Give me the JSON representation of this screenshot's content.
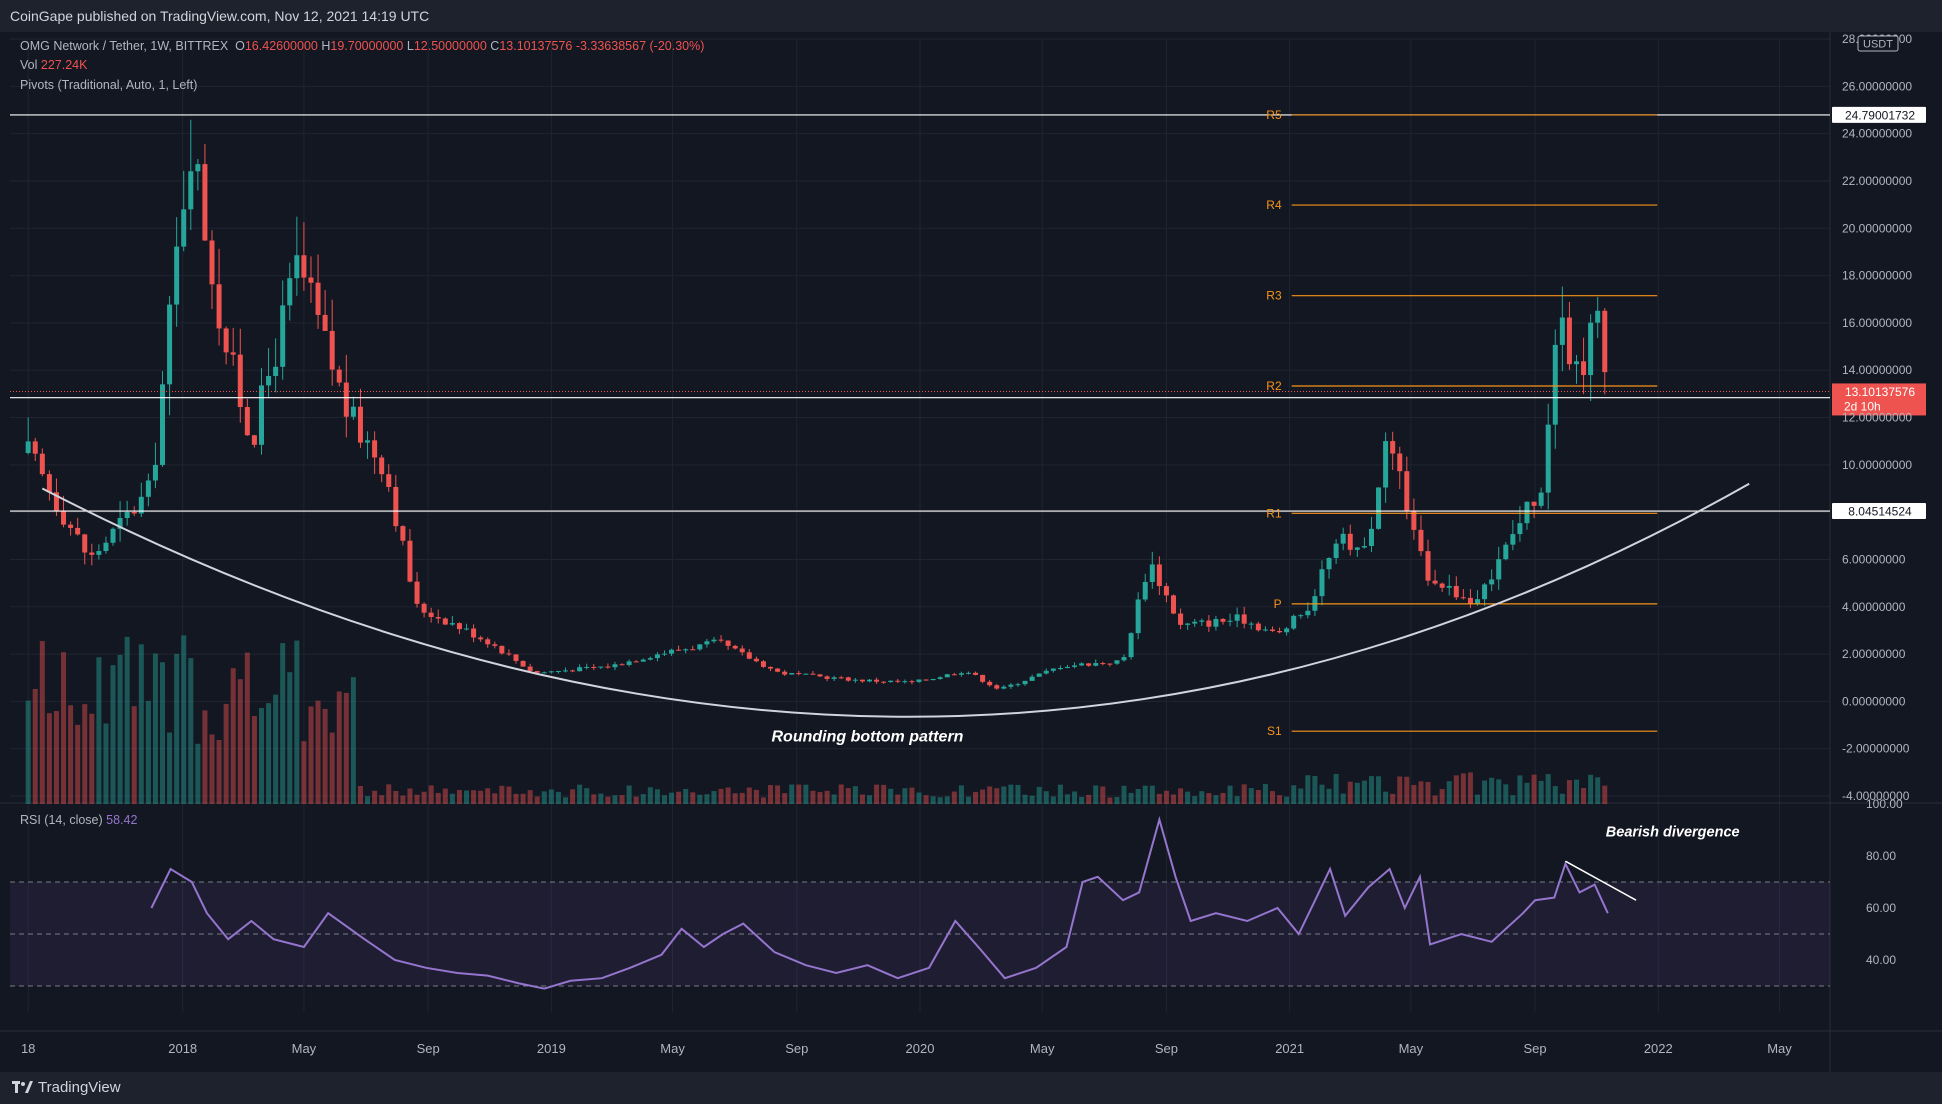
{
  "publisher": "CoinGape published on TradingView.com, Nov 12, 2021 14:19 UTC",
  "brand": "TradingView",
  "header": {
    "symbol": "OMG Network / Tether, 1W, BITTREX",
    "o_label": "O",
    "o": "16.42600000",
    "h_label": "H",
    "h": "19.70000000",
    "l_label": "L",
    "l": "12.50000000",
    "c_label": "C",
    "c": "13.10137576",
    "change": "-3.33638567 (-20.30%)",
    "vol_label": "Vol",
    "vol": "227.24K",
    "pivots": "Pivots (Traditional, Auto, 1, Left)",
    "rsi_label": "RSI (14, close)",
    "rsi_value": "58.42"
  },
  "annotations": {
    "rounding": "Rounding bottom pattern",
    "divergence": "Bearish divergence"
  },
  "colors": {
    "bg": "#131722",
    "up": "#26a69a",
    "down": "#ef5350",
    "pivot": "#f7931a",
    "rsi": "#9575cd",
    "hline": "#ffffff"
  },
  "chart_data": {
    "type": "candlestick",
    "title": "OMG Network / Tether, 1W, BITTREX",
    "y_axis": {
      "unit": "USDT",
      "range": [
        -4,
        28
      ],
      "ticks": [
        "28.00000000",
        "26.00000000",
        "24.00000000",
        "22.00000000",
        "20.00000000",
        "18.00000000",
        "16.00000000",
        "14.00000000",
        "12.00000000",
        "10.00000000",
        "8.00000000",
        "6.00000000",
        "4.00000000",
        "2.00000000",
        "0.00000000",
        "-2.00000000",
        "-4.00000000"
      ]
    },
    "x_axis": {
      "range": [
        "2017-07-14",
        "2022-06-20"
      ],
      "ticks": [
        {
          "label": "18",
          "date": "2017-08-01"
        },
        {
          "label": "2018",
          "date": "2018-01-01"
        },
        {
          "label": "May",
          "date": "2018-05-01"
        },
        {
          "label": "Sep",
          "date": "2018-09-01"
        },
        {
          "label": "2019",
          "date": "2019-01-01"
        },
        {
          "label": "May",
          "date": "2019-05-01"
        },
        {
          "label": "Sep",
          "date": "2019-09-01"
        },
        {
          "label": "2020",
          "date": "2020-01-01"
        },
        {
          "label": "May",
          "date": "2020-05-01"
        },
        {
          "label": "Sep",
          "date": "2020-09-01"
        },
        {
          "label": "2021",
          "date": "2021-01-01"
        },
        {
          "label": "May",
          "date": "2021-05-01"
        },
        {
          "label": "Sep",
          "date": "2021-09-01"
        },
        {
          "label": "2022",
          "date": "2022-01-01"
        },
        {
          "label": "May",
          "date": "2022-05-01"
        }
      ]
    },
    "horizontal_levels": [
      {
        "value": 24.79001732,
        "label": "24.79001732"
      },
      {
        "value": 12.83736765,
        "label": "12.83736765"
      },
      {
        "value": 8.04514524,
        "label": "8.04514524"
      }
    ],
    "last_price": {
      "value": 13.10137576,
      "label": "13.10137576",
      "countdown": "2d 10h"
    },
    "pivots": {
      "start": "2021-01-01",
      "end": "2021-12-31",
      "levels": [
        {
          "name": "R5",
          "value": 24.79
        },
        {
          "name": "R4",
          "value": 20.98
        },
        {
          "name": "R3",
          "value": 17.15
        },
        {
          "name": "R2",
          "value": 13.33
        },
        {
          "name": "R1",
          "value": 7.95
        },
        {
          "name": "P",
          "value": 4.12
        },
        {
          "name": "S1",
          "value": -1.26
        }
      ]
    },
    "key_points": [
      {
        "date": "2017-08-01",
        "price": 10.5
      },
      {
        "date": "2017-10-01",
        "price": 6.0
      },
      {
        "date": "2017-12-01",
        "price": 9.0
      },
      {
        "date": "2018-01-08",
        "price": 24.0
      },
      {
        "date": "2018-02-10",
        "price": 15.5
      },
      {
        "date": "2018-03-10",
        "price": 11.0
      },
      {
        "date": "2018-04-25",
        "price": 18.5
      },
      {
        "date": "2018-06-15",
        "price": 12.0
      },
      {
        "date": "2018-07-20",
        "price": 10.0
      },
      {
        "date": "2018-08-20",
        "price": 4.0
      },
      {
        "date": "2018-09-20",
        "price": 3.4
      },
      {
        "date": "2018-11-01",
        "price": 2.5
      },
      {
        "date": "2018-12-15",
        "price": 1.2
      },
      {
        "date": "2019-03-01",
        "price": 1.5
      },
      {
        "date": "2019-04-15",
        "price": 2.0
      },
      {
        "date": "2019-06-15",
        "price": 2.5
      },
      {
        "date": "2019-08-15",
        "price": 1.2
      },
      {
        "date": "2019-11-01",
        "price": 0.9
      },
      {
        "date": "2019-12-25",
        "price": 0.8
      },
      {
        "date": "2020-02-15",
        "price": 1.3
      },
      {
        "date": "2020-03-20",
        "price": 0.5
      },
      {
        "date": "2020-05-20",
        "price": 1.5
      },
      {
        "date": "2020-07-20",
        "price": 1.7
      },
      {
        "date": "2020-08-15",
        "price": 6.0
      },
      {
        "date": "2020-09-15",
        "price": 3.2
      },
      {
        "date": "2020-11-15",
        "price": 3.5
      },
      {
        "date": "2020-12-20",
        "price": 2.8
      },
      {
        "date": "2021-01-20",
        "price": 4.0
      },
      {
        "date": "2021-02-15",
        "price": 7.0
      },
      {
        "date": "2021-03-15",
        "price": 6.0
      },
      {
        "date": "2021-04-10",
        "price": 11.5
      },
      {
        "date": "2021-04-30",
        "price": 7.5
      },
      {
        "date": "2021-05-15",
        "price": 5.5
      },
      {
        "date": "2021-07-05",
        "price": 4.0
      },
      {
        "date": "2021-08-15",
        "price": 7.5
      },
      {
        "date": "2021-09-10",
        "price": 9.5
      },
      {
        "date": "2021-09-20",
        "price": 16.0
      },
      {
        "date": "2021-10-15",
        "price": 14.0
      },
      {
        "date": "2021-11-01",
        "price": 16.4
      },
      {
        "date": "2021-11-12",
        "price": 13.1
      }
    ],
    "rounding_curve": [
      {
        "date": "2017-08-15",
        "price": 9.0
      },
      {
        "date": "2019-12-25",
        "price": -0.65
      },
      {
        "date": "2022-04-01",
        "price": 9.2
      }
    ],
    "rsi": {
      "name": "RSI (14, close)",
      "range": [
        20,
        100
      ],
      "ticks": [
        "100.00",
        "80.00",
        "60.00",
        "40.00"
      ],
      "bands": {
        "upper": 70,
        "middle": 50,
        "lower": 30
      },
      "points": [
        [
          "2017-12-01",
          60
        ],
        [
          "2017-12-20",
          75
        ],
        [
          "2018-01-10",
          70
        ],
        [
          "2018-01-25",
          58
        ],
        [
          "2018-02-15",
          48
        ],
        [
          "2018-03-10",
          55
        ],
        [
          "2018-04-01",
          48
        ],
        [
          "2018-05-01",
          45
        ],
        [
          "2018-05-25",
          58
        ],
        [
          "2018-06-30",
          48
        ],
        [
          "2018-07-30",
          40
        ],
        [
          "2018-08-30",
          37
        ],
        [
          "2018-09-30",
          35
        ],
        [
          "2018-10-30",
          34
        ],
        [
          "2018-11-30",
          31
        ],
        [
          "2018-12-25",
          29
        ],
        [
          "2019-01-20",
          32
        ],
        [
          "2019-02-20",
          33
        ],
        [
          "2019-03-20",
          37
        ],
        [
          "2019-04-20",
          42
        ],
        [
          "2019-05-10",
          52
        ],
        [
          "2019-06-01",
          45
        ],
        [
          "2019-06-20",
          50
        ],
        [
          "2019-07-10",
          54
        ],
        [
          "2019-08-10",
          43
        ],
        [
          "2019-09-10",
          38
        ],
        [
          "2019-10-10",
          35
        ],
        [
          "2019-11-10",
          38
        ],
        [
          "2019-12-10",
          33
        ],
        [
          "2020-01-10",
          37
        ],
        [
          "2020-02-05",
          55
        ],
        [
          "2020-03-01",
          44
        ],
        [
          "2020-03-25",
          33
        ],
        [
          "2020-04-25",
          37
        ],
        [
          "2020-05-25",
          45
        ],
        [
          "2020-06-10",
          70
        ],
        [
          "2020-06-25",
          72
        ],
        [
          "2020-07-20",
          63
        ],
        [
          "2020-08-05",
          66
        ],
        [
          "2020-08-25",
          94
        ],
        [
          "2020-09-10",
          72
        ],
        [
          "2020-09-25",
          55
        ],
        [
          "2020-10-20",
          58
        ],
        [
          "2020-11-20",
          55
        ],
        [
          "2020-12-20",
          60
        ],
        [
          "2021-01-10",
          50
        ],
        [
          "2021-01-25",
          62
        ],
        [
          "2021-02-10",
          75
        ],
        [
          "2021-02-25",
          57
        ],
        [
          "2021-03-20",
          68
        ],
        [
          "2021-04-10",
          75
        ],
        [
          "2021-04-25",
          60
        ],
        [
          "2021-05-10",
          72
        ],
        [
          "2021-05-20",
          46
        ],
        [
          "2021-06-20",
          50
        ],
        [
          "2021-07-20",
          47
        ],
        [
          "2021-08-20",
          58
        ],
        [
          "2021-09-01",
          63
        ],
        [
          "2021-09-20",
          64
        ],
        [
          "2021-10-01",
          77
        ],
        [
          "2021-10-15",
          66
        ],
        [
          "2021-10-30",
          69
        ],
        [
          "2021-11-12",
          58
        ]
      ],
      "divergence_line": [
        [
          "2021-10-01",
          78
        ],
        [
          "2021-12-10",
          63
        ]
      ]
    }
  }
}
